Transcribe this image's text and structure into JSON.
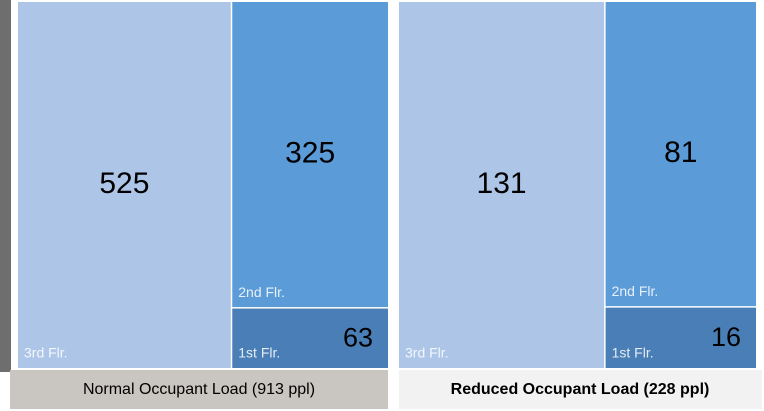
{
  "chart_data": [
    {
      "type": "treemap",
      "title": "Normal Occupant Load (913 ppl)",
      "categories": [
        "3rd Flr.",
        "2nd Flr.",
        "1st Flr."
      ],
      "values": [
        525,
        325,
        63
      ],
      "colors": [
        "#adc6e8",
        "#5b9bd8",
        "#4a7eb6"
      ]
    },
    {
      "type": "treemap",
      "title": "Reduced Occupant Load (228 ppl)",
      "categories": [
        "3rd Flr.",
        "2nd Flr.",
        "1st Flr."
      ],
      "values": [
        131,
        81,
        16
      ],
      "colors": [
        "#adc6e8",
        "#5b9bd8",
        "#4a7eb6"
      ]
    }
  ]
}
